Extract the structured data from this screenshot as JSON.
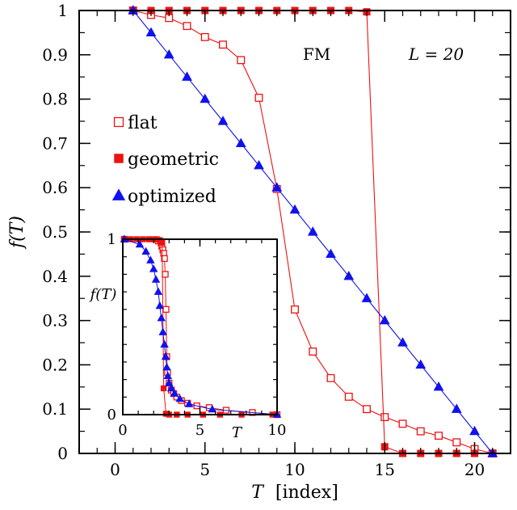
{
  "chart_data": [
    {
      "type": "line",
      "xlabel_italic": "T",
      "xlabel_rest": "[index]",
      "ylabel": "f(T)",
      "xlim": [
        -2,
        22
      ],
      "ylim": [
        0,
        1
      ],
      "xticks": [
        0,
        5,
        10,
        15,
        20
      ],
      "yticks": [
        0,
        0.1,
        0.2,
        0.3,
        0.4,
        0.5,
        0.6,
        0.7,
        0.8,
        0.9,
        1
      ],
      "annotations": {
        "phase": "FM",
        "size": "L = 20"
      },
      "legend_position": "left",
      "colors": {
        "red": "#ee1111",
        "blue": "#1111ee"
      },
      "series": [
        {
          "name": "flat",
          "marker": "open-square",
          "color": "#ee1111",
          "x": [
            1,
            2,
            3,
            4,
            5,
            6,
            7,
            8,
            9,
            10,
            11,
            12,
            13,
            14,
            15,
            16,
            17,
            18,
            19,
            20,
            21
          ],
          "y": [
            1.0,
            0.99,
            0.983,
            0.965,
            0.94,
            0.923,
            0.888,
            0.803,
            0.597,
            0.325,
            0.23,
            0.17,
            0.128,
            0.1,
            0.082,
            0.067,
            0.05,
            0.04,
            0.025,
            0.01,
            0.0
          ]
        },
        {
          "name": "geometric",
          "marker": "filled-square",
          "color": "#ee1111",
          "x": [
            1,
            2,
            3,
            4,
            5,
            6,
            7,
            8,
            9,
            10,
            11,
            12,
            13,
            14,
            15,
            16,
            17,
            18,
            19,
            20,
            21
          ],
          "y": [
            1,
            1,
            1,
            1,
            1,
            1,
            1,
            1,
            1,
            1,
            1,
            1,
            1,
            0.997,
            0.015,
            0,
            0,
            0,
            0,
            0,
            0
          ]
        },
        {
          "name": "optimized",
          "marker": "filled-triangle",
          "color": "#1111ee",
          "x": [
            1,
            2,
            3,
            4,
            5,
            6,
            7,
            8,
            9,
            10,
            11,
            12,
            13,
            14,
            15,
            16,
            17,
            18,
            19,
            20,
            21
          ],
          "y": [
            1.0,
            0.95,
            0.9,
            0.85,
            0.8,
            0.75,
            0.7,
            0.65,
            0.6,
            0.55,
            0.5,
            0.45,
            0.4,
            0.35,
            0.3,
            0.25,
            0.2,
            0.15,
            0.1,
            0.05,
            0.0
          ]
        }
      ]
    },
    {
      "type": "line",
      "xlabel": "T",
      "ylabel": "f(T)",
      "xlim": [
        0,
        10
      ],
      "ylim": [
        0,
        1
      ],
      "xticks": [
        0,
        5,
        10
      ],
      "yticks": [
        0,
        1
      ],
      "series": [
        {
          "name": "flat",
          "marker": "open-square",
          "color": "#ee1111",
          "x": [
            0.1,
            2.3,
            2.48,
            2.53,
            2.6,
            2.65,
            2.7,
            2.75,
            2.8,
            2.85,
            2.9,
            3.0,
            3.15,
            3.3,
            3.5,
            3.8,
            4.2,
            4.8,
            5.6,
            6.7,
            8.4,
            10.0
          ],
          "y": [
            1.0,
            0.99,
            0.98,
            0.96,
            0.94,
            0.92,
            0.89,
            0.8,
            0.6,
            0.33,
            0.24,
            0.18,
            0.14,
            0.12,
            0.1,
            0.08,
            0.065,
            0.05,
            0.04,
            0.025,
            0.012,
            0.0
          ]
        },
        {
          "name": "geometric",
          "marker": "filled-square",
          "color": "#ee1111",
          "x": [
            0.1,
            0.5,
            0.9,
            1.3,
            1.7,
            2.0,
            2.2,
            2.4,
            2.55,
            2.65,
            2.8,
            3.0,
            3.5,
            4.2,
            5.2,
            6.3,
            7.7,
            9.7
          ],
          "y": [
            1,
            1,
            1,
            1,
            1,
            1,
            1,
            0.995,
            0.98,
            0.15,
            0.005,
            0,
            0,
            0,
            0,
            0,
            0,
            0
          ]
        },
        {
          "name": "optimized",
          "marker": "filled-triangle",
          "color": "#1111ee",
          "x": [
            0.1,
            1.1,
            1.5,
            1.8,
            2.0,
            2.15,
            2.3,
            2.4,
            2.5,
            2.6,
            2.7,
            2.78,
            2.85,
            2.92,
            3.0,
            3.15,
            3.35,
            3.7,
            4.3,
            5.8,
            10.0
          ],
          "y": [
            1.0,
            0.97,
            0.93,
            0.88,
            0.83,
            0.77,
            0.7,
            0.62,
            0.55,
            0.47,
            0.4,
            0.33,
            0.27,
            0.22,
            0.18,
            0.15,
            0.12,
            0.09,
            0.06,
            0.03,
            0.0
          ]
        }
      ]
    }
  ]
}
